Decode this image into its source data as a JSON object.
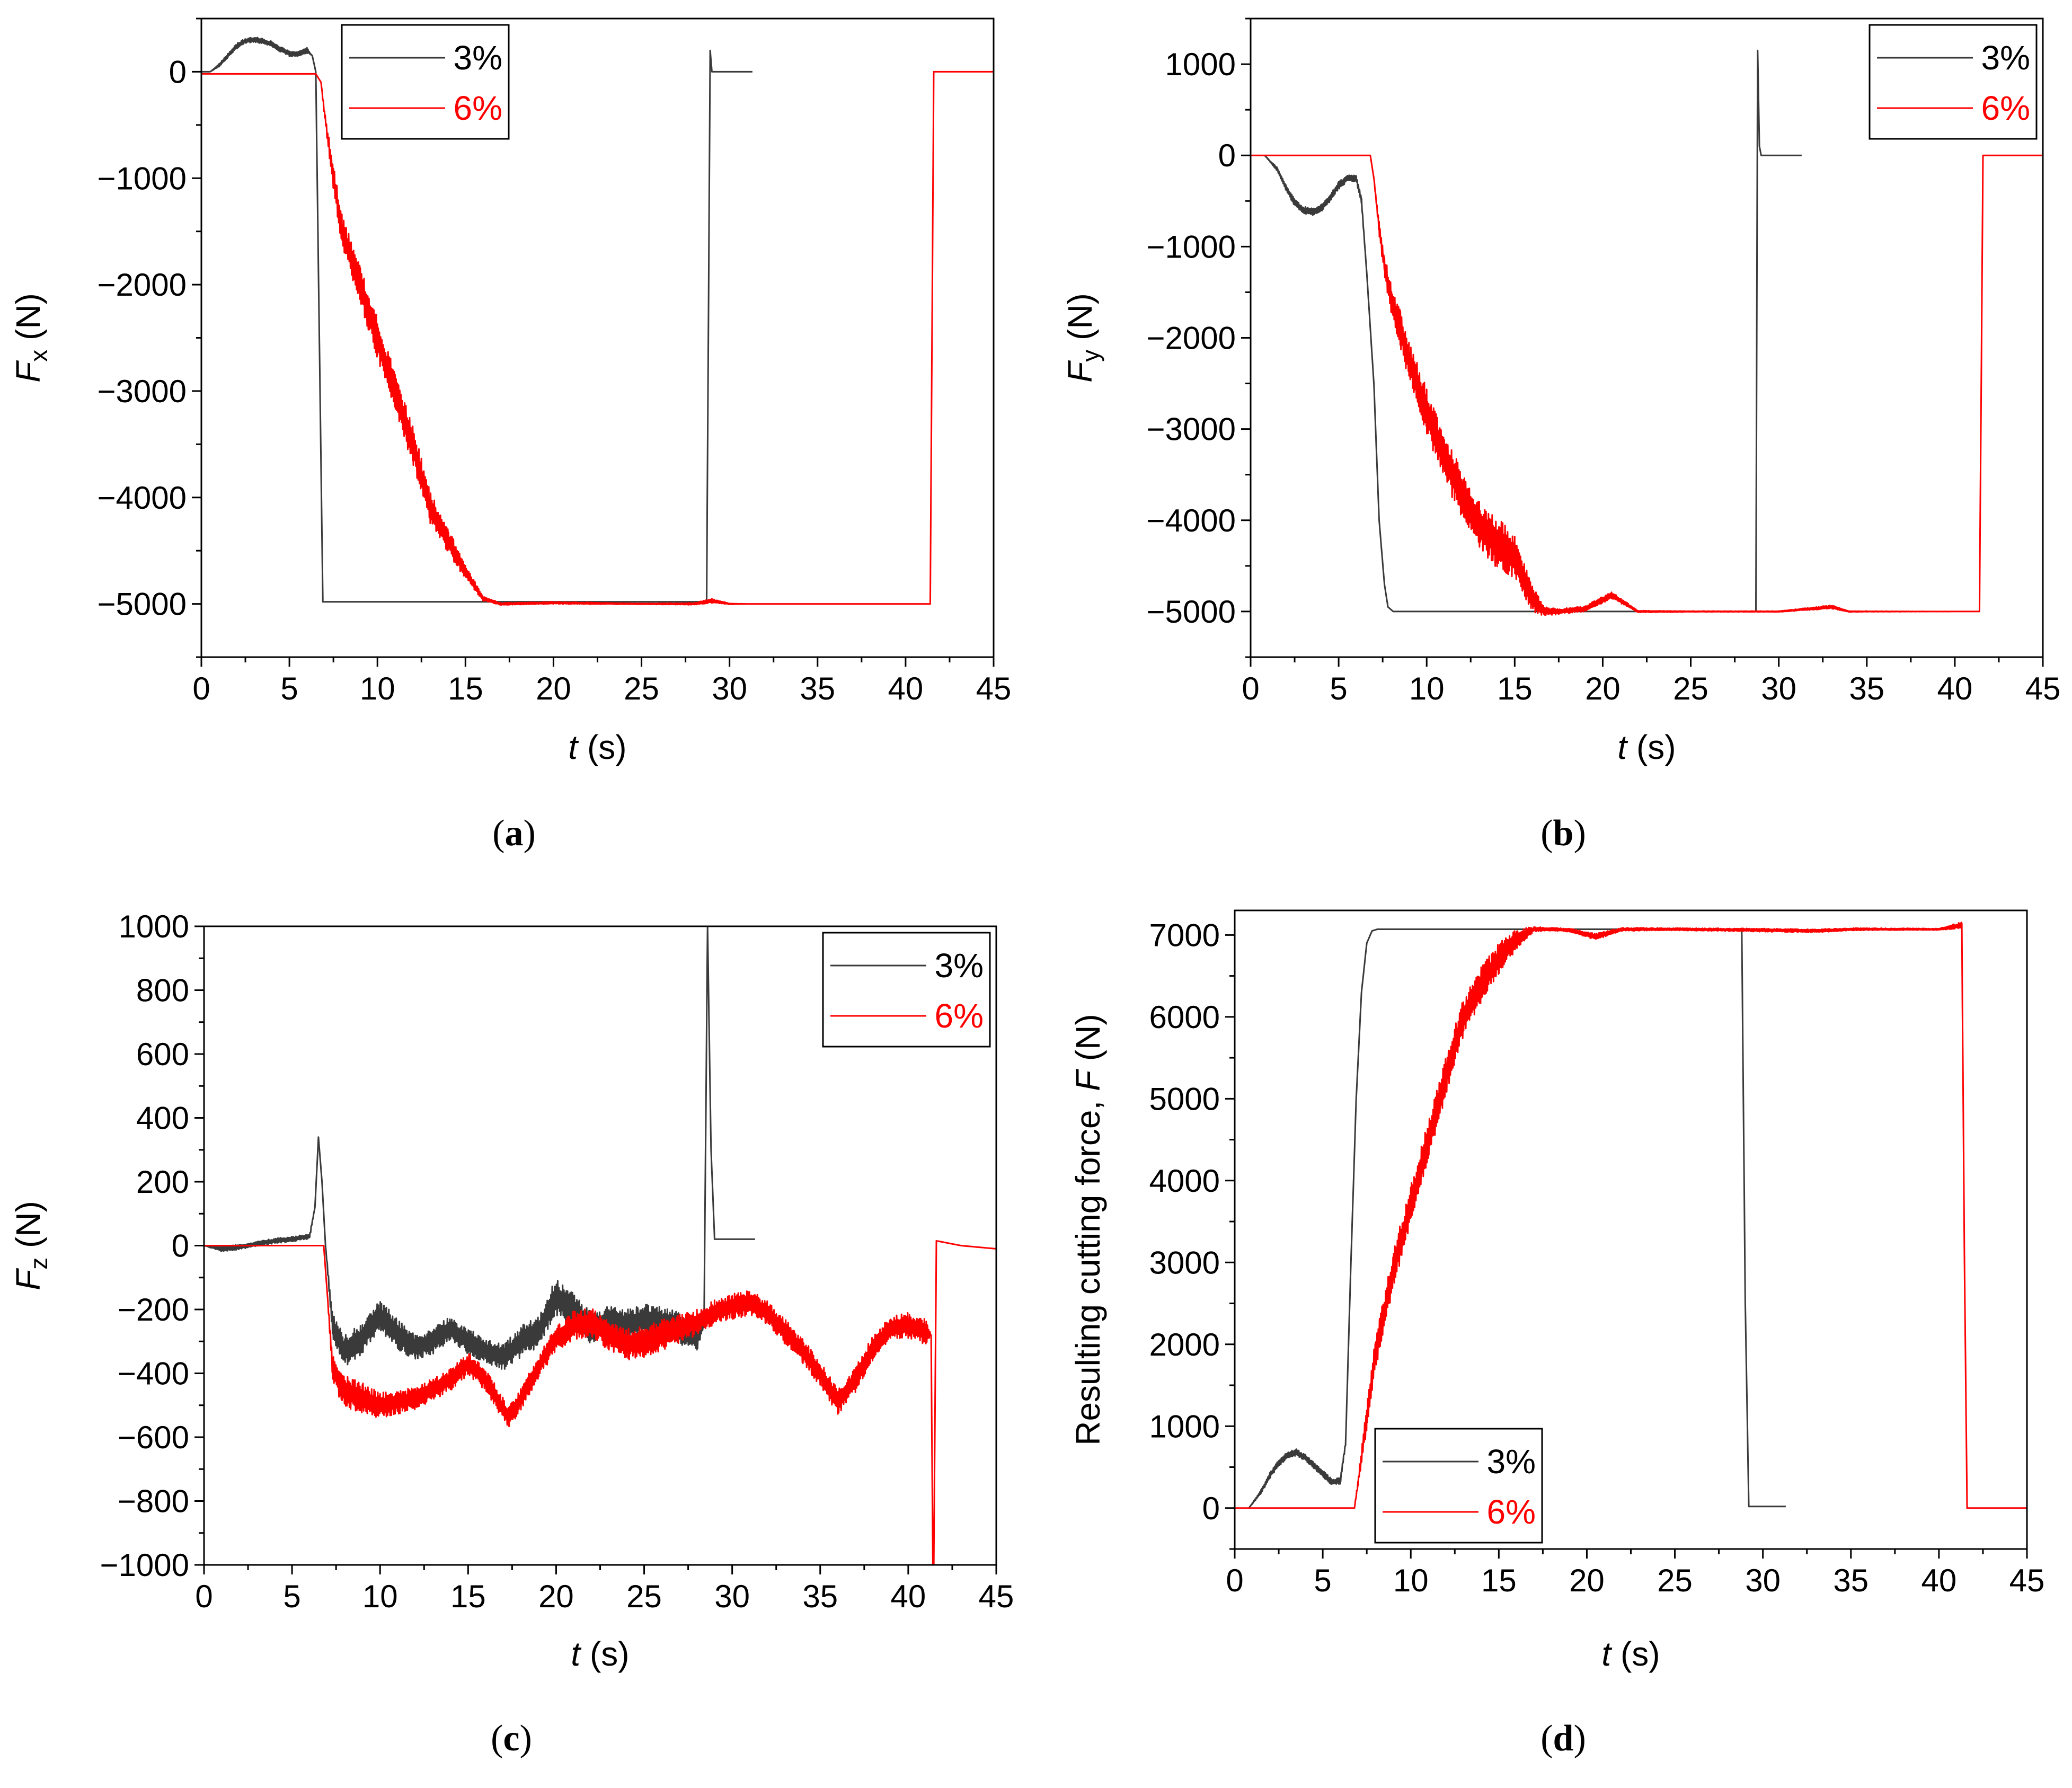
{
  "chart_data": [
    {
      "id": "a",
      "type": "line",
      "caption_letter": "a",
      "xlabel_var": "t",
      "xlabel_unit": "(s)",
      "ylabel_var": "F",
      "ylabel_sub": "x",
      "ylabel_unit": "(N)",
      "xlim": [
        0,
        45
      ],
      "ylim": [
        -5500,
        500
      ],
      "xticks": [
        0,
        5,
        10,
        15,
        20,
        25,
        30,
        35,
        40,
        45
      ],
      "yticks": [
        0,
        -1000,
        -2000,
        -3000,
        -4000,
        -5000
      ],
      "ytick_labels": [
        "0",
        "−1000",
        "−2000",
        "−3000",
        "−4000",
        "−5000"
      ],
      "legend": {
        "position": "top-left",
        "entries": [
          "3%",
          "6%"
        ]
      },
      "series": [
        {
          "name": "3%",
          "color": "#3a3a3a",
          "x": [
            0,
            0.5,
            1,
            1.5,
            2,
            2.5,
            3,
            3.5,
            4,
            4.5,
            5,
            5.5,
            6,
            6.3,
            6.5,
            6.7,
            6.9,
            7.0,
            10,
            15,
            20,
            25,
            28.3,
            28.7,
            28.9,
            29.0,
            29.2,
            31.3
          ],
          "y": [
            0,
            0,
            60,
            150,
            240,
            290,
            300,
            290,
            260,
            210,
            170,
            170,
            200,
            150,
            0,
            -2500,
            -4980,
            -4980,
            -4980,
            -4980,
            -4980,
            -4980,
            -4980,
            -4980,
            200,
            0,
            0,
            0
          ],
          "noise": [
            0,
            0,
            15,
            20,
            25,
            25,
            25,
            25,
            25,
            25,
            25,
            25,
            25,
            0,
            0,
            0,
            0,
            0,
            0,
            0,
            0,
            0,
            0,
            0,
            0,
            0,
            0,
            0
          ]
        },
        {
          "name": "6%",
          "color": "#ff0000",
          "x": [
            0,
            6.5,
            6.8,
            7.0,
            7.5,
            8,
            9,
            10,
            11,
            12,
            13,
            14,
            15,
            16,
            17,
            20,
            25,
            28,
            29,
            30,
            31,
            35,
            40,
            41.3,
            41.4,
            41.6,
            45
          ],
          "y": [
            -20,
            -20,
            -100,
            -400,
            -1000,
            -1500,
            -2000,
            -2500,
            -3000,
            -3500,
            -4100,
            -4400,
            -4700,
            -4950,
            -5000,
            -4990,
            -5000,
            -5000,
            -4970,
            -5000,
            -5000,
            -5000,
            -5000,
            -5000,
            -5000,
            0,
            0
          ],
          "noise": [
            0,
            0,
            0,
            40,
            120,
            150,
            180,
            200,
            200,
            180,
            150,
            120,
            70,
            20,
            10,
            10,
            5,
            10,
            20,
            5,
            0,
            0,
            0,
            0,
            0,
            0,
            0
          ]
        }
      ]
    },
    {
      "id": "b",
      "type": "line",
      "caption_letter": "b",
      "xlabel_var": "t",
      "xlabel_unit": "(s)",
      "ylabel_var": "F",
      "ylabel_sub": "y",
      "ylabel_unit": "(N)",
      "xlim": [
        0,
        45
      ],
      "ylim": [
        -5500,
        1500
      ],
      "xticks": [
        0,
        5,
        10,
        15,
        20,
        25,
        30,
        35,
        40,
        45
      ],
      "yticks": [
        1000,
        0,
        -1000,
        -2000,
        -3000,
        -4000,
        -5000
      ],
      "ytick_labels": [
        "1000",
        "0",
        "−1000",
        "−2000",
        "−3000",
        "−4000",
        "−5000"
      ],
      "legend": {
        "position": "top-right",
        "entries": [
          "3%",
          "6%"
        ]
      },
      "series": [
        {
          "name": "3%",
          "color": "#3a3a3a",
          "x": [
            0.8,
            1.5,
            2,
            2.5,
            3,
            3.5,
            4,
            4.5,
            5,
            5.5,
            6,
            6.3,
            6.6,
            7,
            7.3,
            7.6,
            7.8,
            8.1,
            8.5,
            10,
            15,
            20,
            25,
            28.7,
            28.8,
            28.9,
            29.0,
            29.1,
            31.3
          ],
          "y": [
            0,
            -150,
            -350,
            -520,
            -600,
            -620,
            -580,
            -470,
            -330,
            -250,
            -250,
            -500,
            -1300,
            -2500,
            -4000,
            -4700,
            -4950,
            -5000,
            -5000,
            -5000,
            -5000,
            -5000,
            -5000,
            -5000,
            1150,
            100,
            0,
            0,
            0
          ],
          "noise": [
            0,
            20,
            30,
            40,
            40,
            40,
            40,
            40,
            40,
            40,
            40,
            30,
            0,
            0,
            0,
            0,
            0,
            0,
            0,
            0,
            0,
            0,
            0,
            0,
            0,
            0,
            0,
            0,
            0
          ]
        },
        {
          "name": "6%",
          "color": "#ff0000",
          "x": [
            0,
            6.8,
            7.0,
            7.3,
            7.6,
            8,
            8.5,
            9,
            10,
            11,
            12,
            13,
            14,
            15,
            16,
            16.7,
            17.5,
            19,
            20.5,
            22,
            25,
            30,
            33,
            34,
            40,
            41.3,
            41.4,
            41.6,
            45
          ],
          "y": [
            0,
            0,
            -250,
            -800,
            -1200,
            -1600,
            -1900,
            -2250,
            -2800,
            -3300,
            -3700,
            -4050,
            -4250,
            -4400,
            -4850,
            -5000,
            -5000,
            -4970,
            -4820,
            -5000,
            -5000,
            -5000,
            -4950,
            -5000,
            -5000,
            -5000,
            -5000,
            0,
            0
          ],
          "noise": [
            0,
            0,
            0,
            80,
            120,
            170,
            200,
            220,
            250,
            270,
            270,
            260,
            280,
            250,
            150,
            50,
            30,
            30,
            40,
            10,
            5,
            5,
            20,
            5,
            0,
            0,
            0,
            0,
            0
          ]
        }
      ]
    },
    {
      "id": "c",
      "type": "line",
      "caption_letter": "c",
      "xlabel_var": "t",
      "xlabel_unit": "(s)",
      "ylabel_var": "F",
      "ylabel_sub": "z",
      "ylabel_unit": "(N)",
      "xlim": [
        0,
        45
      ],
      "ylim": [
        -1000,
        1000
      ],
      "xticks": [
        0,
        5,
        10,
        15,
        20,
        25,
        30,
        35,
        40,
        45
      ],
      "yticks": [
        1000,
        800,
        600,
        400,
        200,
        0,
        -200,
        -400,
        -600,
        -800,
        -1000
      ],
      "ytick_labels": [
        "1000",
        "800",
        "600",
        "400",
        "200",
        "0",
        "−200",
        "−400",
        "−600",
        "−800",
        "−1000"
      ],
      "legend": {
        "position": "top-right",
        "entries": [
          "3%",
          "6%"
        ]
      },
      "series": [
        {
          "name": "3%",
          "color": "#3a3a3a",
          "x": [
            0,
            1,
            2,
            3,
            4,
            5,
            6,
            6.3,
            6.5,
            6.7,
            6.9,
            7.3,
            8,
            9,
            10,
            11,
            12,
            13,
            14,
            15,
            16,
            17,
            18,
            19,
            20,
            21,
            22,
            23,
            24,
            25,
            26,
            27,
            28,
            28.4,
            28.6,
            28.8,
            29.0,
            30.0,
            31.3
          ],
          "y": [
            0,
            -10,
            -5,
            5,
            15,
            20,
            30,
            120,
            340,
            200,
            0,
            -250,
            -330,
            -290,
            -220,
            -280,
            -320,
            -300,
            -260,
            -300,
            -330,
            -350,
            -300,
            -270,
            -160,
            -200,
            -260,
            -240,
            -250,
            -230,
            -240,
            -260,
            -290,
            -250,
            1000,
            300,
            20,
            20,
            20
          ],
          "noise": [
            0,
            8,
            8,
            8,
            8,
            8,
            8,
            0,
            0,
            0,
            0,
            40,
            50,
            50,
            50,
            50,
            40,
            40,
            40,
            40,
            40,
            40,
            50,
            50,
            60,
            50,
            50,
            50,
            50,
            50,
            50,
            50,
            40,
            0,
            0,
            0,
            0,
            0,
            0
          ]
        },
        {
          "name": "6%",
          "color": "#ff0000",
          "x": [
            0,
            6.8,
            7.0,
            7.3,
            7.8,
            9,
            10,
            12,
            14,
            15,
            16,
            17.3,
            18,
            19,
            20,
            21,
            22,
            23,
            24,
            25,
            26,
            27,
            28,
            29,
            30,
            31,
            32,
            33,
            34,
            35,
            36,
            37,
            38,
            39,
            40,
            41,
            41.3,
            41.4,
            41.45,
            41.6,
            43,
            45
          ],
          "y": [
            0,
            0,
            -150,
            -380,
            -450,
            -480,
            -500,
            -480,
            -420,
            -370,
            -420,
            -540,
            -480,
            -380,
            -290,
            -250,
            -240,
            -280,
            -310,
            -300,
            -280,
            -260,
            -240,
            -210,
            -190,
            -180,
            -210,
            -270,
            -330,
            -400,
            -490,
            -420,
            -320,
            -260,
            -250,
            -270,
            -280,
            -1000,
            -1000,
            15,
            0,
            -10
          ],
          "noise": [
            0,
            0,
            0,
            40,
            50,
            50,
            40,
            35,
            35,
            35,
            35,
            35,
            35,
            35,
            40,
            45,
            45,
            50,
            50,
            50,
            50,
            45,
            40,
            40,
            40,
            40,
            40,
            40,
            40,
            40,
            40,
            40,
            40,
            40,
            40,
            40,
            0,
            0,
            0,
            0,
            0,
            0
          ]
        }
      ]
    },
    {
      "id": "d",
      "type": "line",
      "caption_letter": "d",
      "xlabel_var": "t",
      "xlabel_unit": "(s)",
      "ylabel_text": "Resulting cutting force, ",
      "ylabel_var": "F",
      "ylabel_sub": "",
      "ylabel_unit": "(N)",
      "xlim": [
        0,
        45
      ],
      "ylim": [
        -500,
        7300
      ],
      "xticks": [
        0,
        5,
        10,
        15,
        20,
        25,
        30,
        35,
        40,
        45
      ],
      "yticks": [
        0,
        1000,
        2000,
        3000,
        4000,
        5000,
        6000,
        7000
      ],
      "ytick_labels": [
        "0",
        "1000",
        "2000",
        "3000",
        "4000",
        "5000",
        "6000",
        "7000"
      ],
      "legend": {
        "position": "bottom-left",
        "entries": [
          "3%",
          "6%"
        ]
      },
      "series": [
        {
          "name": "3%",
          "color": "#3a3a3a",
          "x": [
            0.8,
            1.5,
            2,
            2.5,
            3,
            3.5,
            4,
            4.5,
            5,
            5.5,
            6,
            6.3,
            6.6,
            6.9,
            7.2,
            7.5,
            7.8,
            8.1,
            10,
            15,
            20,
            25,
            28.6,
            28.8,
            29.0,
            29.2,
            31.3
          ],
          "y": [
            0,
            200,
            400,
            550,
            650,
            680,
            620,
            520,
            420,
            320,
            330,
            800,
            3000,
            5000,
            6300,
            6900,
            7050,
            7070,
            7070,
            7070,
            7070,
            7070,
            7070,
            7070,
            2500,
            20,
            20
          ],
          "noise": [
            0,
            25,
            35,
            40,
            40,
            40,
            40,
            40,
            40,
            40,
            40,
            30,
            0,
            0,
            0,
            0,
            0,
            0,
            0,
            0,
            0,
            0,
            0,
            0,
            0,
            0,
            0
          ]
        },
        {
          "name": "6%",
          "color": "#ff0000",
          "x": [
            0,
            6.8,
            7.0,
            7.5,
            8,
            9,
            10,
            11,
            12,
            13,
            14,
            15,
            16,
            17,
            18,
            19,
            20.5,
            22,
            25,
            30,
            33,
            35,
            40,
            41.3,
            41.45,
            41.6,
            45
          ],
          "y": [
            0,
            0,
            300,
            1100,
            1900,
            2900,
            3700,
            4500,
            5300,
            6000,
            6400,
            6700,
            6950,
            7070,
            7070,
            7060,
            6980,
            7070,
            7070,
            7060,
            7050,
            7070,
            7070,
            7120,
            3000,
            0,
            0
          ],
          "noise": [
            0,
            0,
            50,
            150,
            200,
            230,
            250,
            250,
            250,
            230,
            220,
            200,
            120,
            30,
            20,
            20,
            40,
            20,
            15,
            20,
            20,
            15,
            10,
            40,
            0,
            0,
            0
          ]
        }
      ]
    }
  ]
}
